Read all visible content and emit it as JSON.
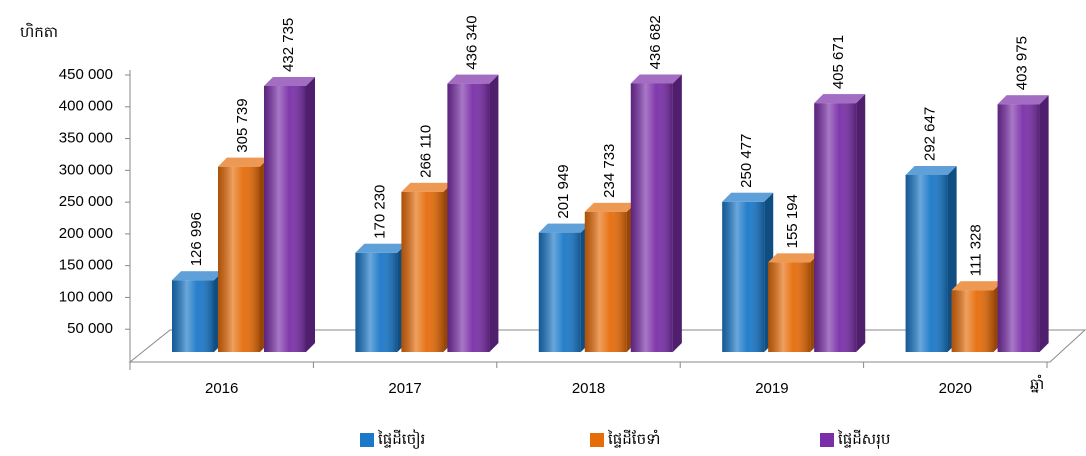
{
  "chart_data": {
    "type": "bar",
    "y_label": "ហិកតា",
    "x_label": "ឆ្នាំ",
    "categories": [
      "2016",
      "2017",
      "2018",
      "2019",
      "2020"
    ],
    "series": [
      {
        "name": "ផ្ទៃដីចៀរ",
        "color": "#1a78c8",
        "values": [
          126996,
          170230,
          201949,
          250477,
          292647
        ],
        "value_labels": [
          "126 996",
          "170 230",
          "201 949",
          "250 477",
          "292 647"
        ]
      },
      {
        "name": "ផ្ទៃដីចែទាំ",
        "color": "#e66c0a",
        "values": [
          305739,
          266110,
          234733,
          155194,
          111328
        ],
        "value_labels": [
          "305 739",
          "266 110",
          "234 733",
          "155 194",
          "111 328"
        ]
      },
      {
        "name": "ផ្ទៃដីសរុប",
        "color": "#7a2fa8",
        "values": [
          432735,
          436340,
          436682,
          405671,
          403975
        ],
        "value_labels": [
          "432 735",
          "436 340",
          "436 682",
          "405 671",
          "403 975"
        ]
      }
    ],
    "ylim": [
      0,
      450000
    ],
    "yticks": [
      {
        "value": 50000,
        "label": "50 000"
      },
      {
        "value": 100000,
        "label": "100 000"
      },
      {
        "value": 150000,
        "label": "150 000"
      },
      {
        "value": 200000,
        "label": "200 000"
      },
      {
        "value": 250000,
        "label": "250 000"
      },
      {
        "value": 300000,
        "label": "300 000"
      },
      {
        "value": 350000,
        "label": "350 000"
      },
      {
        "value": 400000,
        "label": "400 000"
      },
      {
        "value": 450000,
        "label": "450 000"
      }
    ],
    "legend": "bottom"
  }
}
